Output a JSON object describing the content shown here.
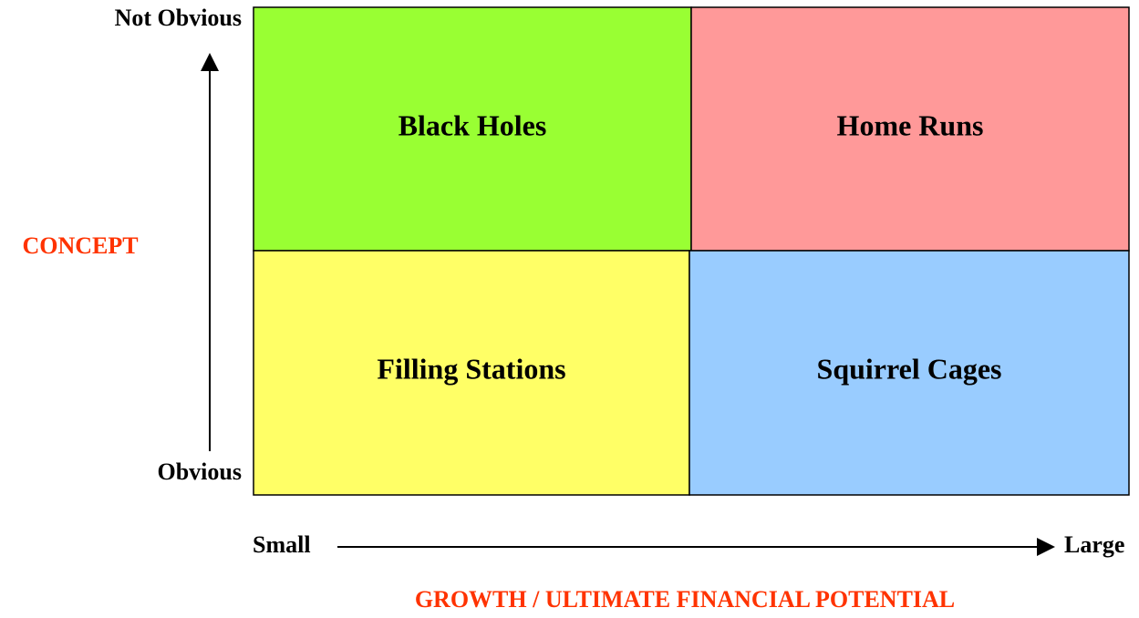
{
  "y_axis": {
    "title": "CONCEPT",
    "top_label": "Not Obvious",
    "bottom_label": "Obvious"
  },
  "x_axis": {
    "title": "GROWTH / ULTIMATE FINANCIAL POTENTIAL",
    "left_label": "Small",
    "right_label": "Large"
  },
  "quadrants": [
    {
      "label": "Black Holes",
      "color": "#99ff33"
    },
    {
      "label": "Home Runs",
      "color": "#ff9999"
    },
    {
      "label": "Filling Stations",
      "color": "#ffff66"
    },
    {
      "label": "Squirrel Cages",
      "color": "#99ccff"
    }
  ]
}
